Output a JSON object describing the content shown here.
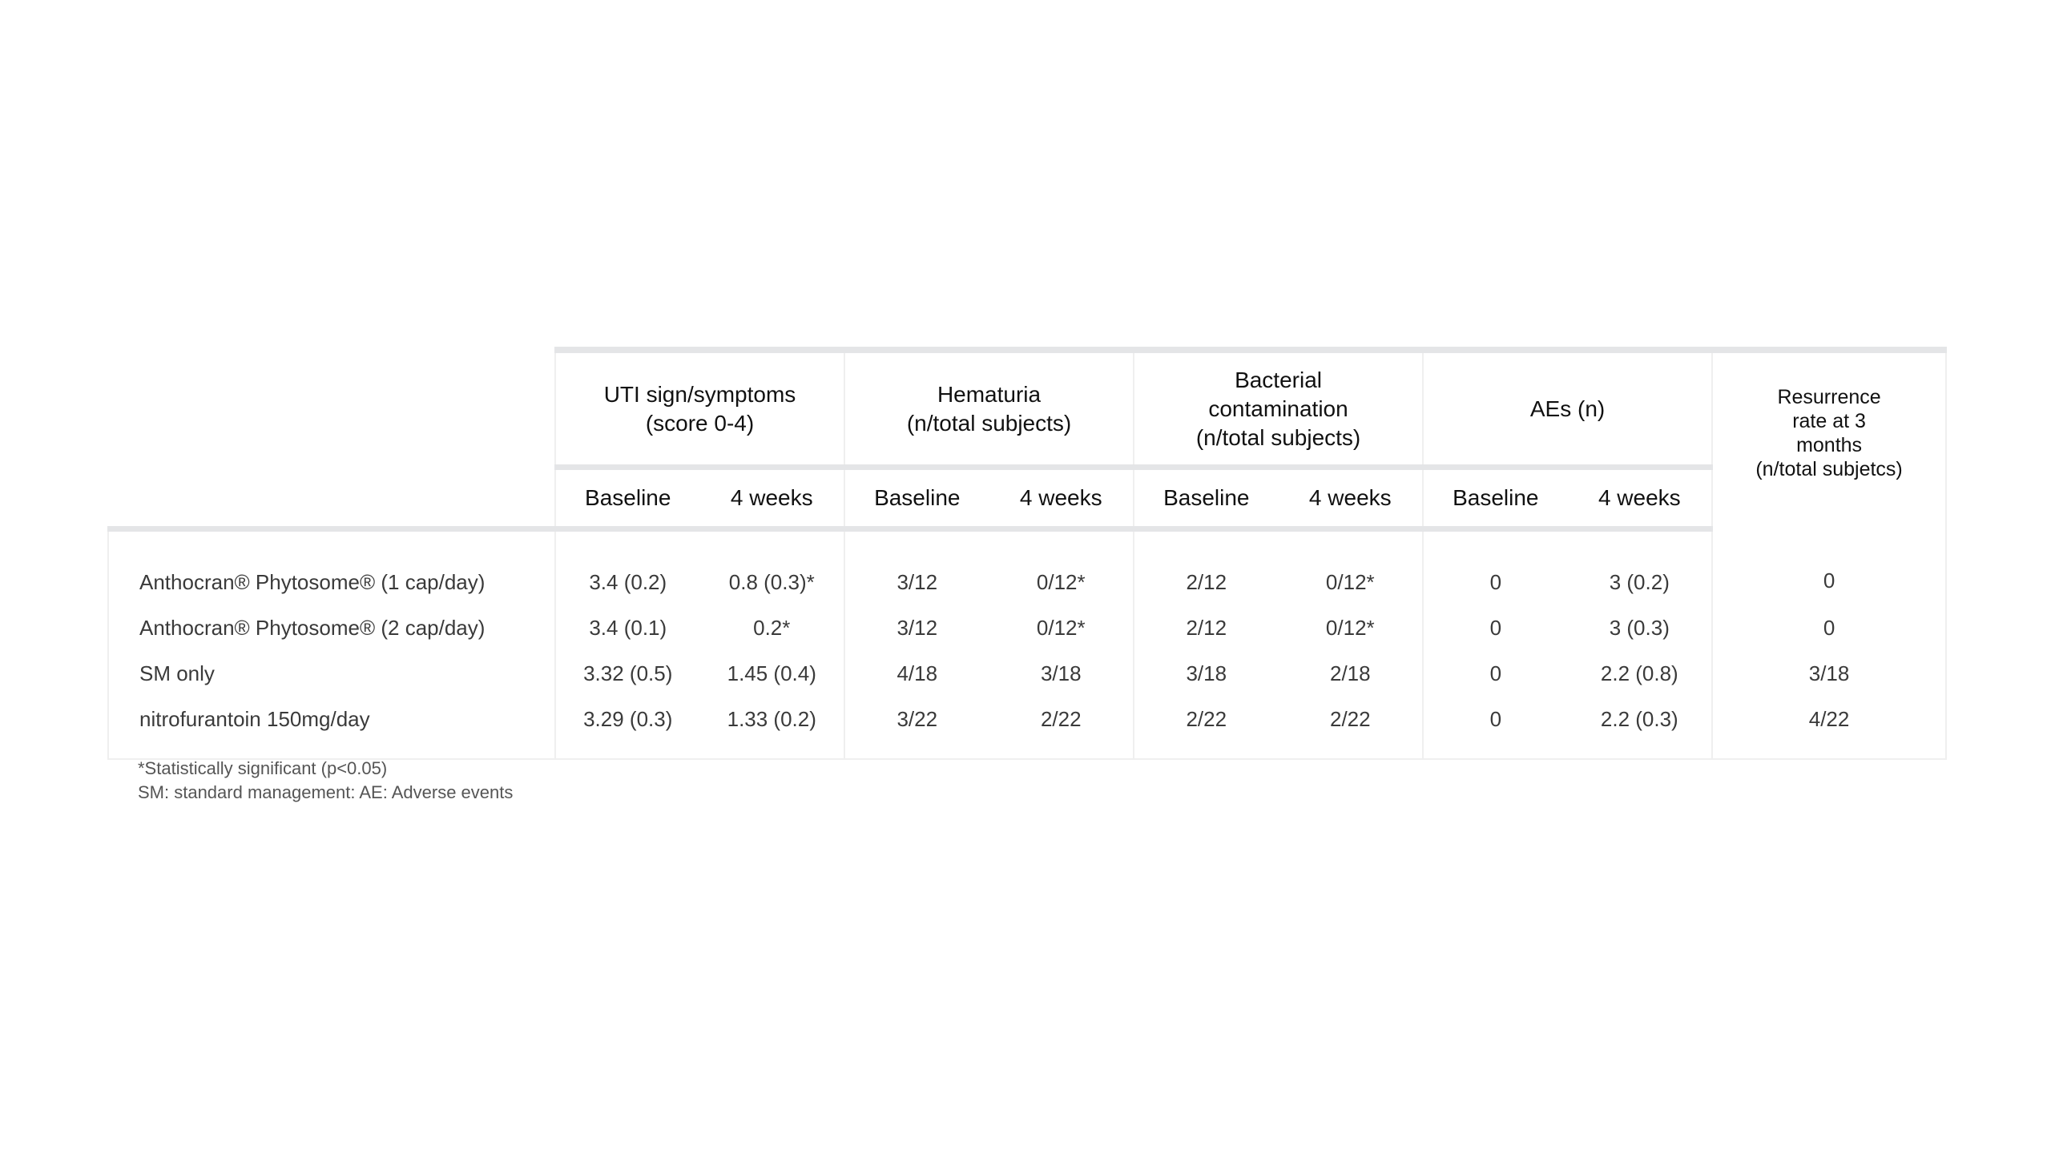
{
  "table": {
    "groups": [
      {
        "label": "UTI sign/symptoms\n(score 0-4)"
      },
      {
        "label": "Hematuria\n(n/total subjects)"
      },
      {
        "label": "Bacterial\ncontamination\n(n/total subjects)"
      },
      {
        "label": "AEs (n)"
      }
    ],
    "last_column": "Resurrence\nrate at 3\nmonths\n(n/total subjetcs)",
    "subheaders": [
      "Baseline",
      "4 weeks"
    ],
    "rows": [
      {
        "label": "Anthocran® Phytosome® (1 cap/day)",
        "values": [
          "3.4 (0.2)",
          "0.8 (0.3)*",
          "3/12",
          "0/12*",
          "2/12",
          "0/12*",
          "0",
          "3 (0.2)",
          "0"
        ]
      },
      {
        "label": "Anthocran® Phytosome® (2 cap/day)",
        "values": [
          "3.4 (0.1)",
          "0.2*",
          "3/12",
          "0/12*",
          "2/12",
          "0/12*",
          "0",
          "3 (0.3)",
          "0"
        ]
      },
      {
        "label": "SM only",
        "values": [
          "3.32 (0.5)",
          "1.45 (0.4)",
          "4/18",
          "3/18",
          "3/18",
          "2/18",
          "0",
          "2.2 (0.8)",
          "3/18"
        ]
      },
      {
        "label": "nitrofurantoin 150mg/day",
        "values": [
          "3.29 (0.3)",
          "1.33 (0.2)",
          "3/22",
          "2/22",
          "2/22",
          "2/22",
          "0",
          "2.2 (0.3)",
          "4/22"
        ]
      }
    ]
  },
  "footnotes": [
    "*Statistically significant (p<0.05)",
    "SM: standard management: AE: Adverse events"
  ]
}
